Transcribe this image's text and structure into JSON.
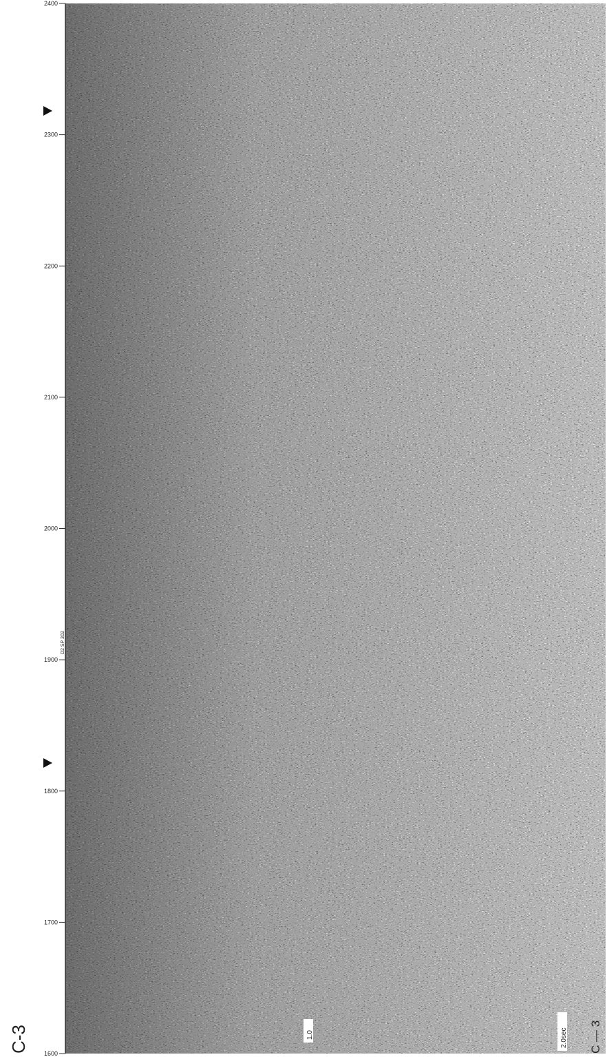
{
  "axis": {
    "ticks": [
      2400,
      2300,
      2200,
      2100,
      2000,
      1900,
      1800,
      1700,
      1600
    ]
  },
  "labels": {
    "line_left": "C-3",
    "line_right": "C — 3",
    "time_1": "1.0",
    "time_2": "2.0sec",
    "shotpoint_note": "D2 SP 302"
  }
}
